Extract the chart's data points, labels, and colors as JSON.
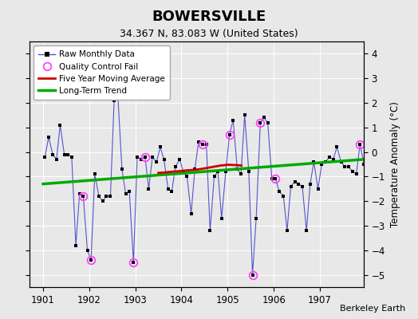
{
  "title": "BOWERSVILLE",
  "subtitle": "34.367 N, 83.083 W (United States)",
  "ylabel": "Temperature Anomaly (°C)",
  "credit": "Berkeley Earth",
  "ylim": [
    -5.5,
    4.5
  ],
  "xlim": [
    1900.7,
    1907.95
  ],
  "xticks": [
    1901,
    1902,
    1903,
    1904,
    1905,
    1906,
    1907
  ],
  "yticks": [
    -5,
    -4,
    -3,
    -2,
    -1,
    0,
    1,
    2,
    3,
    4
  ],
  "bg_color": "#e8e8e8",
  "plot_bg_color": "#e8e8e8",
  "raw_x": [
    1901.04,
    1901.12,
    1901.21,
    1901.29,
    1901.37,
    1901.46,
    1901.54,
    1901.62,
    1901.71,
    1901.79,
    1901.87,
    1901.96,
    1902.04,
    1902.12,
    1902.21,
    1902.29,
    1902.37,
    1902.46,
    1902.54,
    1902.62,
    1902.71,
    1902.79,
    1902.87,
    1902.96,
    1903.04,
    1903.12,
    1903.21,
    1903.29,
    1903.37,
    1903.46,
    1903.54,
    1903.62,
    1903.71,
    1903.79,
    1903.87,
    1903.96,
    1904.04,
    1904.12,
    1904.21,
    1904.29,
    1904.37,
    1904.46,
    1904.54,
    1904.62,
    1904.71,
    1904.79,
    1904.87,
    1904.96,
    1905.04,
    1905.12,
    1905.21,
    1905.29,
    1905.37,
    1905.46,
    1905.54,
    1905.62,
    1905.71,
    1905.79,
    1905.87,
    1905.96,
    1906.04,
    1906.12,
    1906.21,
    1906.29,
    1906.37,
    1906.46,
    1906.54,
    1906.62,
    1906.71,
    1906.79,
    1906.87,
    1906.96,
    1907.04,
    1907.12,
    1907.21,
    1907.29,
    1907.37,
    1907.46,
    1907.54,
    1907.62,
    1907.71,
    1907.79,
    1907.87,
    1907.96
  ],
  "raw_y": [
    -0.2,
    0.6,
    -0.1,
    -0.3,
    1.1,
    -0.1,
    -0.1,
    -0.2,
    -3.8,
    -1.7,
    -1.8,
    -4.0,
    -4.4,
    -0.9,
    -1.8,
    -2.0,
    -1.8,
    -1.8,
    2.1,
    2.3,
    -0.7,
    -1.7,
    -1.6,
    -4.5,
    -0.2,
    -0.3,
    -0.2,
    -1.5,
    -0.2,
    -0.4,
    0.2,
    -0.3,
    -1.5,
    -1.6,
    -0.6,
    -0.3,
    -0.8,
    -1.0,
    -2.5,
    -0.7,
    0.4,
    0.3,
    0.3,
    -3.2,
    -1.0,
    -0.8,
    -2.7,
    -0.8,
    0.7,
    1.3,
    -0.7,
    -0.9,
    1.5,
    -0.8,
    -5.0,
    -2.7,
    1.2,
    1.4,
    1.2,
    -1.1,
    -1.1,
    -1.6,
    -1.8,
    -3.2,
    -1.4,
    -1.2,
    -1.3,
    -1.4,
    -3.2,
    -1.3,
    -0.4,
    -1.5,
    -0.5,
    -0.4,
    -0.2,
    -0.3,
    0.2,
    -0.4,
    -0.6,
    -0.6,
    -0.8,
    -0.9,
    0.3,
    -0.5
  ],
  "qc_fail_x": [
    1901.87,
    1902.04,
    1902.96,
    1903.21,
    1904.46,
    1905.04,
    1905.54,
    1905.71,
    1906.04,
    1907.87
  ],
  "qc_fail_y": [
    -1.8,
    -4.4,
    -4.5,
    -0.2,
    0.3,
    0.7,
    -5.0,
    1.2,
    -1.1,
    0.3
  ],
  "moving_avg_x": [
    1903.5,
    1903.65,
    1903.8,
    1903.95,
    1904.1,
    1904.25,
    1904.4,
    1904.55,
    1904.7,
    1904.85,
    1905.0,
    1905.15,
    1905.3
  ],
  "moving_avg_y": [
    -0.85,
    -0.83,
    -0.8,
    -0.78,
    -0.75,
    -0.73,
    -0.7,
    -0.65,
    -0.6,
    -0.55,
    -0.52,
    -0.53,
    -0.55
  ],
  "trend_x": [
    1901.0,
    1907.95
  ],
  "trend_y": [
    -1.3,
    -0.3
  ],
  "line_color": "#5555cc",
  "marker_color": "#000000",
  "qc_color": "#ff44ff",
  "moving_avg_color": "#cc0000",
  "trend_color": "#00aa00"
}
